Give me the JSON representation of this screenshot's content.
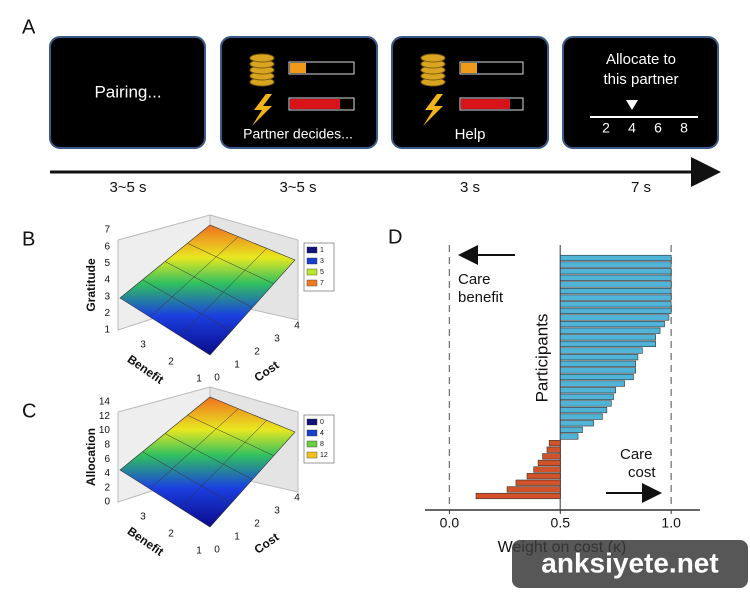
{
  "panel_a": {
    "label": "A",
    "screens": [
      {
        "text": "Pairing...",
        "duration": "3~5 s"
      },
      {
        "text": "Partner decides...",
        "duration": "3~5 s"
      },
      {
        "text": "Help",
        "duration": "3 s"
      },
      {
        "title": [
          "Allocate to",
          "this partner"
        ],
        "scale": [
          "2",
          "4",
          "6",
          "8"
        ],
        "duration": "7 s"
      }
    ]
  },
  "panel_b": {
    "label": "B",
    "z_label": "Gratitude",
    "x_label": "Benefit",
    "y_label": "Cost",
    "zticks": [
      1,
      2,
      3,
      4,
      5,
      6,
      7
    ],
    "xticks": [
      3,
      2,
      1
    ],
    "yticks": [
      0,
      1,
      2,
      3,
      4
    ],
    "legend": [
      {
        "label": 1,
        "color": "#12127a"
      },
      {
        "label": 3,
        "color": "#1a3fd0"
      },
      {
        "label": 5,
        "color": "#b8e82a"
      },
      {
        "label": 7,
        "color": "#f07a22"
      }
    ]
  },
  "panel_c": {
    "label": "C",
    "z_label": "Allocation",
    "x_label": "Benefit",
    "y_label": "Cost",
    "zticks": [
      0,
      2,
      4,
      6,
      8,
      10,
      12,
      14
    ],
    "xticks": [
      3,
      2,
      1
    ],
    "yticks": [
      0,
      1,
      2,
      3,
      4
    ],
    "legend": [
      {
        "label": 0,
        "color": "#12127a"
      },
      {
        "label": 4,
        "color": "#1a3fd0"
      },
      {
        "label": 8,
        "color": "#6ad040"
      },
      {
        "label": 12,
        "color": "#f5c020"
      }
    ]
  },
  "panel_d": {
    "label": "D",
    "xlabel": "Weight on cost (κ)",
    "ylabel": "Participants",
    "xlim": [
      -0.11,
      1.13
    ],
    "xticks": [
      {
        "value": 0,
        "label": "0.0"
      },
      0.5,
      {
        "value": 1,
        "label": "1.0"
      }
    ],
    "baseline": 0.5,
    "reference_lines": [
      0,
      1
    ],
    "values": [
      1.0,
      1.0,
      1.0,
      1.0,
      1.0,
      1.0,
      1.0,
      1.0,
      1.0,
      0.99,
      0.97,
      0.95,
      0.93,
      0.93,
      0.87,
      0.85,
      0.84,
      0.84,
      0.83,
      0.79,
      0.75,
      0.74,
      0.73,
      0.71,
      0.69,
      0.65,
      0.6,
      0.58,
      0.45,
      0.44,
      0.42,
      0.4,
      0.38,
      0.35,
      0.3,
      0.26,
      0.12
    ],
    "color_above": "#4fb4d8",
    "color_below": "#d2522a",
    "annotation_left": [
      "Care",
      "benefit"
    ],
    "annotation_right": [
      "Care",
      "cost"
    ]
  },
  "watermark": "anksiyete.net"
}
